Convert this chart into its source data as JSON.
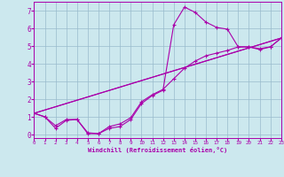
{
  "xlabel": "Windchill (Refroidissement éolien,°C)",
  "background_color": "#cce8ee",
  "line_color": "#aa00aa",
  "grid_color": "#99bbcc",
  "xmin": 0,
  "xmax": 23,
  "ymin": -0.2,
  "ymax": 7.5,
  "yticks": [
    0,
    1,
    2,
    3,
    4,
    5,
    6,
    7
  ],
  "xtick_labels": [
    "0",
    "1",
    "2",
    "3",
    "4",
    "5",
    "6",
    "7",
    "8",
    "9",
    "10",
    "11",
    "12",
    "13",
    "14",
    "15",
    "16",
    "17",
    "18",
    "19",
    "20",
    "21",
    "22",
    "23"
  ],
  "line1_x": [
    0,
    1,
    2,
    3,
    4,
    5,
    6,
    7,
    8,
    9,
    10,
    11,
    12,
    13,
    14,
    15,
    16,
    17,
    18,
    19,
    20,
    21,
    22,
    23
  ],
  "line1_y": [
    1.2,
    1.0,
    0.35,
    0.8,
    0.85,
    0.05,
    0.05,
    0.35,
    0.45,
    0.85,
    1.75,
    2.2,
    2.5,
    6.2,
    7.2,
    6.9,
    6.35,
    6.05,
    5.95,
    4.95,
    4.95,
    4.8,
    4.95,
    5.45
  ],
  "line2_x": [
    0,
    1,
    2,
    3,
    4,
    5,
    6,
    7,
    8,
    9,
    10,
    11,
    12,
    13,
    14,
    15,
    16,
    17,
    18,
    19,
    20,
    21,
    22,
    23
  ],
  "line2_y": [
    1.2,
    1.0,
    0.5,
    0.85,
    0.85,
    0.1,
    0.05,
    0.45,
    0.6,
    0.95,
    1.85,
    2.25,
    2.55,
    3.15,
    3.75,
    4.15,
    4.45,
    4.6,
    4.75,
    4.95,
    4.95,
    4.85,
    4.95,
    5.45
  ],
  "line3_x": [
    0,
    23
  ],
  "line3_y": [
    1.2,
    5.45
  ],
  "line4_x": [
    0,
    23
  ],
  "line4_y": [
    1.2,
    5.45
  ]
}
